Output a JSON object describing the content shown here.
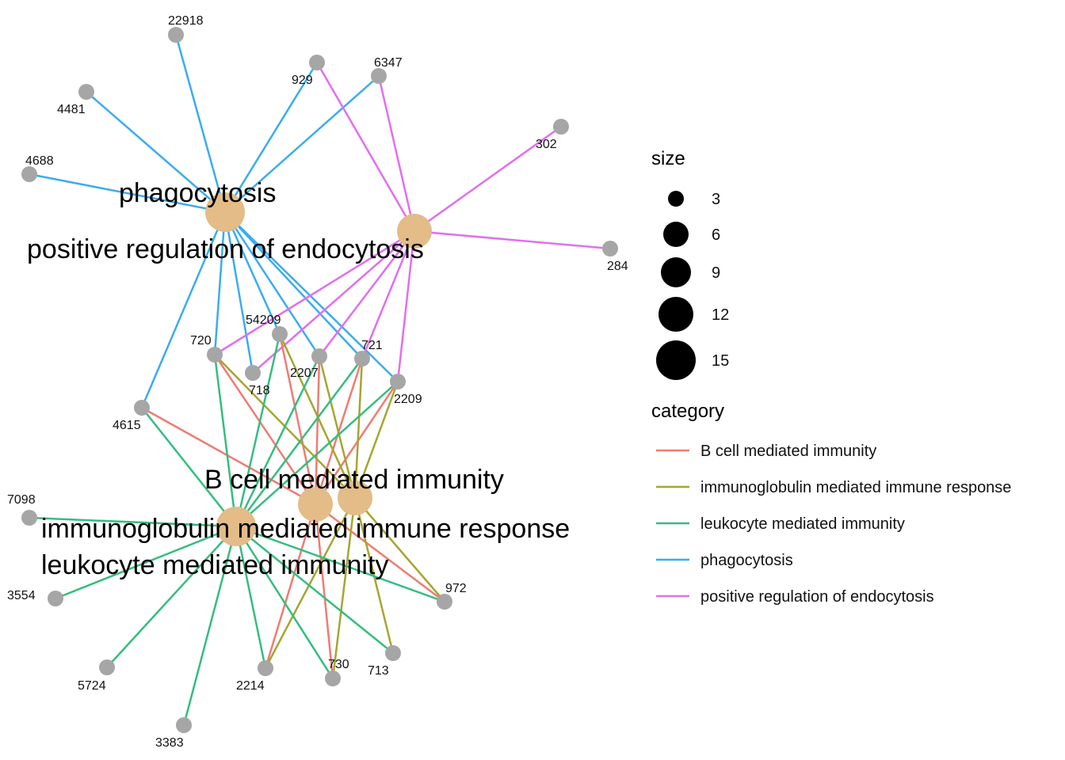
{
  "colors": {
    "gene_node": "#a6a6a6",
    "term_node": "#e3bc88",
    "B cell mediated immunity": "#f07b73",
    "immunoglobulin mediated immune response": "#a5a531",
    "leukocyte mediated immunity": "#34bd7f",
    "phagocytosis": "#3aacee",
    "positive regulation of endocytosis": "#e26ef0"
  },
  "terms": [
    {
      "id": "phago",
      "label": "phagocytosis",
      "size": 15
    },
    {
      "id": "endo",
      "label": "positive regulation of endocytosis",
      "size": 12
    },
    {
      "id": "bcell",
      "label": "B cell mediated immunity",
      "size": 12
    },
    {
      "id": "igm",
      "label": "immunoglobulin mediated immune response",
      "size": 12
    },
    {
      "id": "leuk",
      "label": "leukocyte mediated immunity",
      "size": 15
    }
  ],
  "genes": [
    "22918",
    "929",
    "6347",
    "4481",
    "302",
    "4688",
    "284",
    "54209",
    "720",
    "721",
    "2207",
    "718",
    "2209",
    "4615",
    "7098",
    "972",
    "3554",
    "730",
    "713",
    "5724",
    "2214",
    "3383"
  ],
  "edges": [
    {
      "from": "phago",
      "to": "22918",
      "category": "phagocytosis"
    },
    {
      "from": "phago",
      "to": "4481",
      "category": "phagocytosis"
    },
    {
      "from": "phago",
      "to": "4688",
      "category": "phagocytosis"
    },
    {
      "from": "phago",
      "to": "929",
      "category": "phagocytosis"
    },
    {
      "from": "phago",
      "to": "6347",
      "category": "phagocytosis"
    },
    {
      "from": "phago",
      "to": "720",
      "category": "phagocytosis"
    },
    {
      "from": "phago",
      "to": "718",
      "category": "phagocytosis"
    },
    {
      "from": "phago",
      "to": "54209",
      "category": "phagocytosis"
    },
    {
      "from": "phago",
      "to": "2207",
      "category": "phagocytosis"
    },
    {
      "from": "phago",
      "to": "721",
      "category": "phagocytosis"
    },
    {
      "from": "phago",
      "to": "2209",
      "category": "phagocytosis"
    },
    {
      "from": "phago",
      "to": "4615",
      "category": "phagocytosis"
    },
    {
      "from": "endo",
      "to": "929",
      "category": "positive regulation of endocytosis"
    },
    {
      "from": "endo",
      "to": "6347",
      "category": "positive regulation of endocytosis"
    },
    {
      "from": "endo",
      "to": "302",
      "category": "positive regulation of endocytosis"
    },
    {
      "from": "endo",
      "to": "284",
      "category": "positive regulation of endocytosis"
    },
    {
      "from": "endo",
      "to": "720",
      "category": "positive regulation of endocytosis"
    },
    {
      "from": "endo",
      "to": "718",
      "category": "positive regulation of endocytosis"
    },
    {
      "from": "endo",
      "to": "2207",
      "category": "positive regulation of endocytosis"
    },
    {
      "from": "endo",
      "to": "721",
      "category": "positive regulation of endocytosis"
    },
    {
      "from": "endo",
      "to": "2209",
      "category": "positive regulation of endocytosis"
    },
    {
      "from": "bcell",
      "to": "720",
      "category": "B cell mediated immunity"
    },
    {
      "from": "bcell",
      "to": "54209",
      "category": "B cell mediated immunity"
    },
    {
      "from": "bcell",
      "to": "2207",
      "category": "B cell mediated immunity"
    },
    {
      "from": "bcell",
      "to": "721",
      "category": "B cell mediated immunity"
    },
    {
      "from": "bcell",
      "to": "2209",
      "category": "B cell mediated immunity"
    },
    {
      "from": "bcell",
      "to": "4615",
      "category": "B cell mediated immunity"
    },
    {
      "from": "bcell",
      "to": "972",
      "category": "B cell mediated immunity"
    },
    {
      "from": "bcell",
      "to": "730",
      "category": "B cell mediated immunity"
    },
    {
      "from": "bcell",
      "to": "2214",
      "category": "B cell mediated immunity"
    },
    {
      "from": "igm",
      "to": "720",
      "category": "immunoglobulin mediated immune response"
    },
    {
      "from": "igm",
      "to": "54209",
      "category": "immunoglobulin mediated immune response"
    },
    {
      "from": "igm",
      "to": "2207",
      "category": "immunoglobulin mediated immune response"
    },
    {
      "from": "igm",
      "to": "721",
      "category": "immunoglobulin mediated immune response"
    },
    {
      "from": "igm",
      "to": "2209",
      "category": "immunoglobulin mediated immune response"
    },
    {
      "from": "igm",
      "to": "972",
      "category": "immunoglobulin mediated immune response"
    },
    {
      "from": "igm",
      "to": "730",
      "category": "immunoglobulin mediated immune response"
    },
    {
      "from": "igm",
      "to": "713",
      "category": "immunoglobulin mediated immune response"
    },
    {
      "from": "igm",
      "to": "2214",
      "category": "immunoglobulin mediated immune response"
    },
    {
      "from": "leuk",
      "to": "720",
      "category": "leukocyte mediated immunity"
    },
    {
      "from": "leuk",
      "to": "54209",
      "category": "leukocyte mediated immunity"
    },
    {
      "from": "leuk",
      "to": "2207",
      "category": "leukocyte mediated immunity"
    },
    {
      "from": "leuk",
      "to": "721",
      "category": "leukocyte mediated immunity"
    },
    {
      "from": "leuk",
      "to": "2209",
      "category": "leukocyte mediated immunity"
    },
    {
      "from": "leuk",
      "to": "4615",
      "category": "leukocyte mediated immunity"
    },
    {
      "from": "leuk",
      "to": "7098",
      "category": "leukocyte mediated immunity"
    },
    {
      "from": "leuk",
      "to": "3554",
      "category": "leukocyte mediated immunity"
    },
    {
      "from": "leuk",
      "to": "5724",
      "category": "leukocyte mediated immunity"
    },
    {
      "from": "leuk",
      "to": "3383",
      "category": "leukocyte mediated immunity"
    },
    {
      "from": "leuk",
      "to": "2214",
      "category": "leukocyte mediated immunity"
    },
    {
      "from": "leuk",
      "to": "730",
      "category": "leukocyte mediated immunity"
    },
    {
      "from": "leuk",
      "to": "713",
      "category": "leukocyte mediated immunity"
    },
    {
      "from": "leuk",
      "to": "972",
      "category": "leukocyte mediated immunity"
    }
  ],
  "legend": {
    "size_title": "size",
    "size_items": [
      "3",
      "6",
      "9",
      "12",
      "15"
    ],
    "category_title": "category",
    "category_items": [
      "B cell mediated immunity",
      "immunoglobulin mediated immune response",
      "leukocyte mediated immunity",
      "phagocytosis",
      "positive regulation of endocytosis"
    ]
  }
}
